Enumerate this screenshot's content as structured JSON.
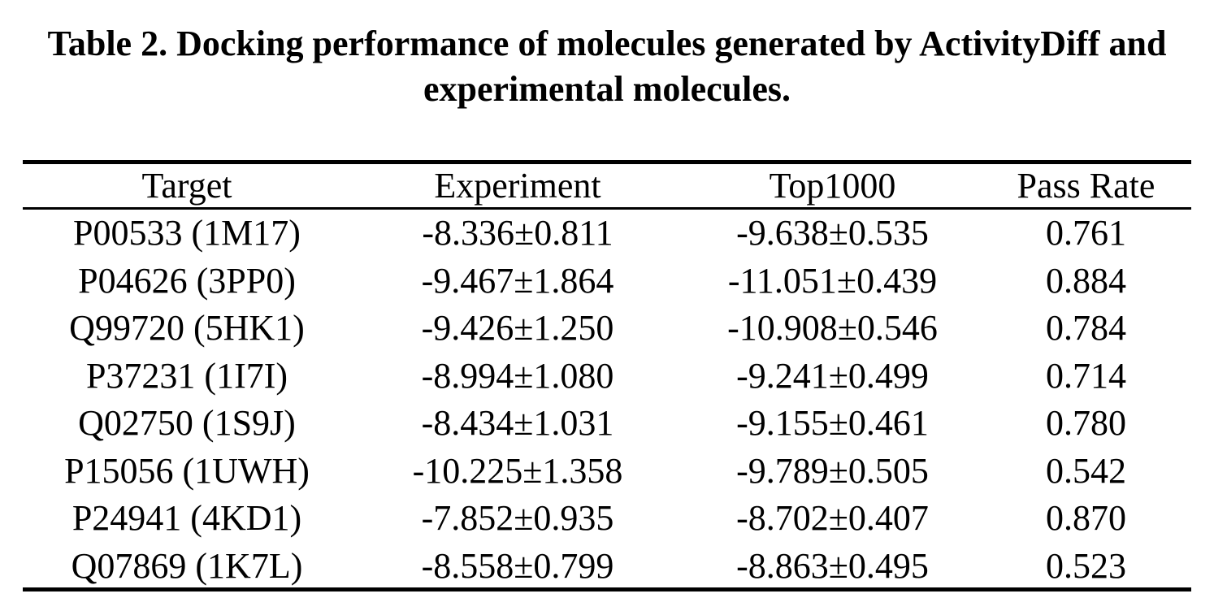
{
  "caption": {
    "line1": "Table 2. Docking performance of molecules generated by ActivityDiff and",
    "line2": "experimental molecules."
  },
  "table": {
    "headers": [
      "Target",
      "Experiment",
      "Top1000",
      "Pass Rate"
    ],
    "rows": [
      [
        "P00533 (1M17)",
        "-8.336±0.811",
        "-9.638±0.535",
        "0.761"
      ],
      [
        "P04626 (3PP0)",
        "-9.467±1.864",
        "-11.051±0.439",
        "0.884"
      ],
      [
        "Q99720 (5HK1)",
        "-9.426±1.250",
        "-10.908±0.546",
        "0.784"
      ],
      [
        "P37231 (1I7I)",
        "-8.994±1.080",
        "-9.241±0.499",
        "0.714"
      ],
      [
        "Q02750 (1S9J)",
        "-8.434±1.031",
        "-9.155±0.461",
        "0.780"
      ],
      [
        "P15056 (1UWH)",
        "-10.225±1.358",
        "-9.789±0.505",
        "0.542"
      ],
      [
        "P24941 (4KD1)",
        "-7.852±0.935",
        "-8.702±0.407",
        "0.870"
      ],
      [
        "Q07869 (1K7L)",
        "-8.558±0.799",
        "-8.863±0.495",
        "0.523"
      ]
    ]
  }
}
